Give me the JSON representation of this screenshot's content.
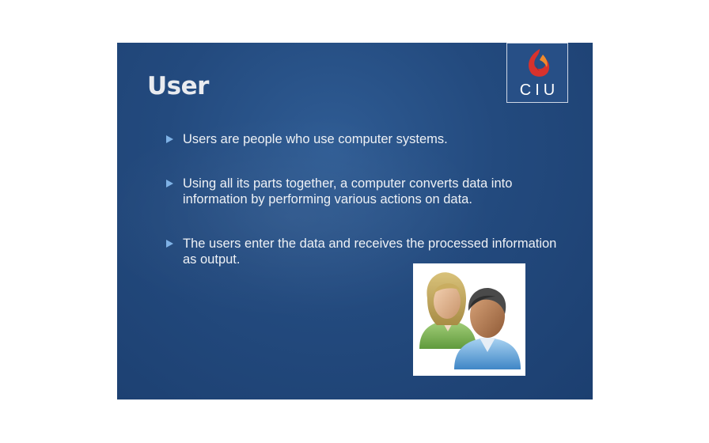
{
  "slide": {
    "title": "User",
    "logo_text": "CIU",
    "logo_icon": "ciu-flame-logo",
    "image_icon": "users-icon",
    "colors": {
      "background": "#234a7e",
      "title": "#e9ebef",
      "text": "#eef1f5",
      "bullet_marker": "#7fb2e6"
    },
    "bullets": [
      {
        "text": "Users are people who use computer systems."
      },
      {
        "text": "Using all its parts together, a computer converts data into information by performing various actions on data."
      },
      {
        "text": "The users enter the data and receives the processed information as output."
      }
    ]
  }
}
